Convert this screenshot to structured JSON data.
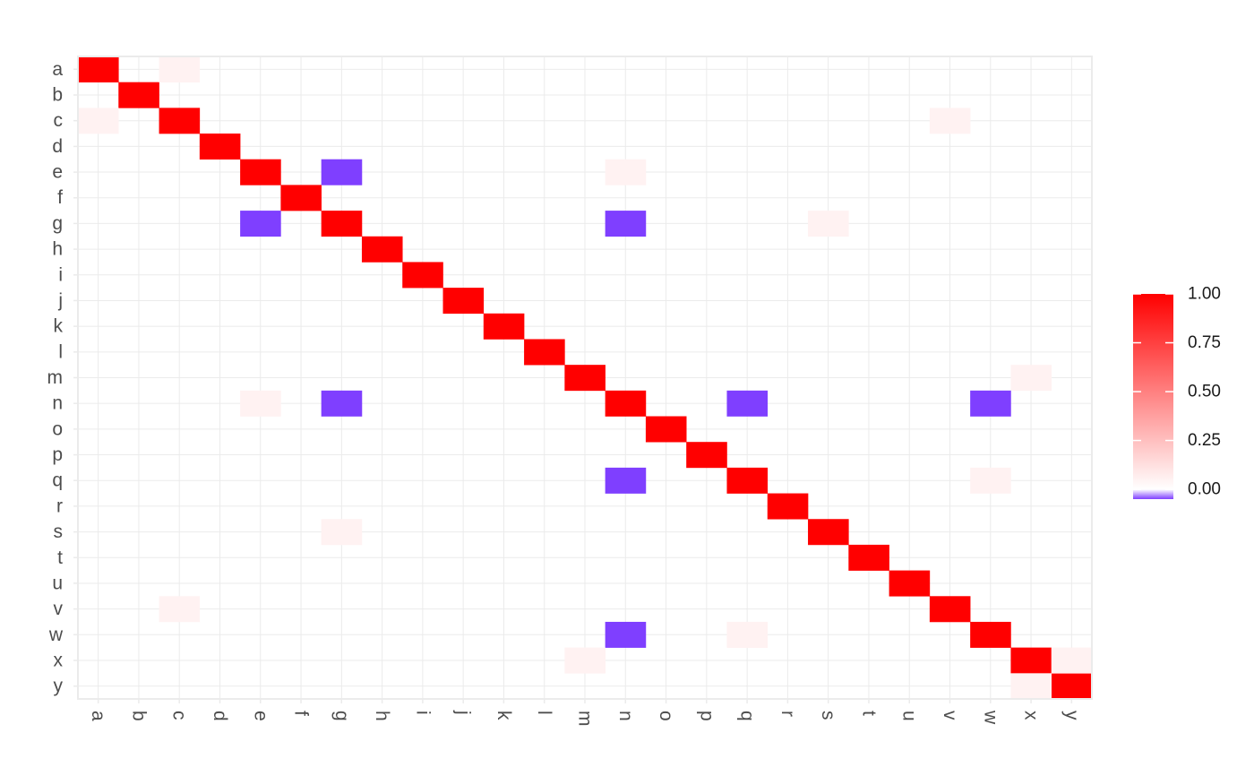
{
  "chart_data": {
    "type": "heatmap",
    "title": "",
    "xlabel": "",
    "ylabel": "",
    "x_categories": [
      "a",
      "b",
      "c",
      "d",
      "e",
      "f",
      "g",
      "h",
      "i",
      "j",
      "k",
      "l",
      "m",
      "n",
      "o",
      "p",
      "q",
      "r",
      "s",
      "t",
      "u",
      "v",
      "w",
      "x",
      "y"
    ],
    "y_categories": [
      "a",
      "b",
      "c",
      "d",
      "e",
      "f",
      "g",
      "h",
      "i",
      "j",
      "k",
      "l",
      "m",
      "n",
      "o",
      "p",
      "q",
      "r",
      "s",
      "t",
      "u",
      "v",
      "w",
      "x",
      "y"
    ],
    "diagonal_value": 1.0,
    "cells": [
      {
        "x": "c",
        "y": "a",
        "value": 0.05
      },
      {
        "x": "a",
        "y": "c",
        "value": 0.05
      },
      {
        "x": "v",
        "y": "c",
        "value": 0.05
      },
      {
        "x": "g",
        "y": "e",
        "value": -0.05
      },
      {
        "x": "n",
        "y": "e",
        "value": 0.05
      },
      {
        "x": "e",
        "y": "g",
        "value": -0.05
      },
      {
        "x": "n",
        "y": "g",
        "value": -0.05
      },
      {
        "x": "s",
        "y": "g",
        "value": 0.05
      },
      {
        "x": "x",
        "y": "m",
        "value": 0.05
      },
      {
        "x": "e",
        "y": "n",
        "value": 0.05
      },
      {
        "x": "g",
        "y": "n",
        "value": -0.05
      },
      {
        "x": "q",
        "y": "n",
        "value": -0.05
      },
      {
        "x": "w",
        "y": "n",
        "value": -0.05
      },
      {
        "x": "n",
        "y": "q",
        "value": -0.05
      },
      {
        "x": "w",
        "y": "q",
        "value": 0.05
      },
      {
        "x": "g",
        "y": "s",
        "value": 0.05
      },
      {
        "x": "c",
        "y": "v",
        "value": 0.05
      },
      {
        "x": "n",
        "y": "w",
        "value": -0.05
      },
      {
        "x": "q",
        "y": "w",
        "value": 0.05
      },
      {
        "x": "m",
        "y": "x",
        "value": 0.05
      },
      {
        "x": "y",
        "y": "x",
        "value": 0.05
      },
      {
        "x": "x",
        "y": "y",
        "value": 0.05
      }
    ],
    "color_scale": {
      "low": "#7f3fff",
      "mid": "#ffffff",
      "high": "#ff0000",
      "range": [
        -0.05,
        1.0
      ],
      "ticks": [
        0.0,
        0.25,
        0.5,
        0.75,
        1.0
      ],
      "tick_labels": [
        "0.00",
        "0.25",
        "0.50",
        "0.75",
        "1.00"
      ]
    },
    "grid": true,
    "legend_position": "right"
  }
}
